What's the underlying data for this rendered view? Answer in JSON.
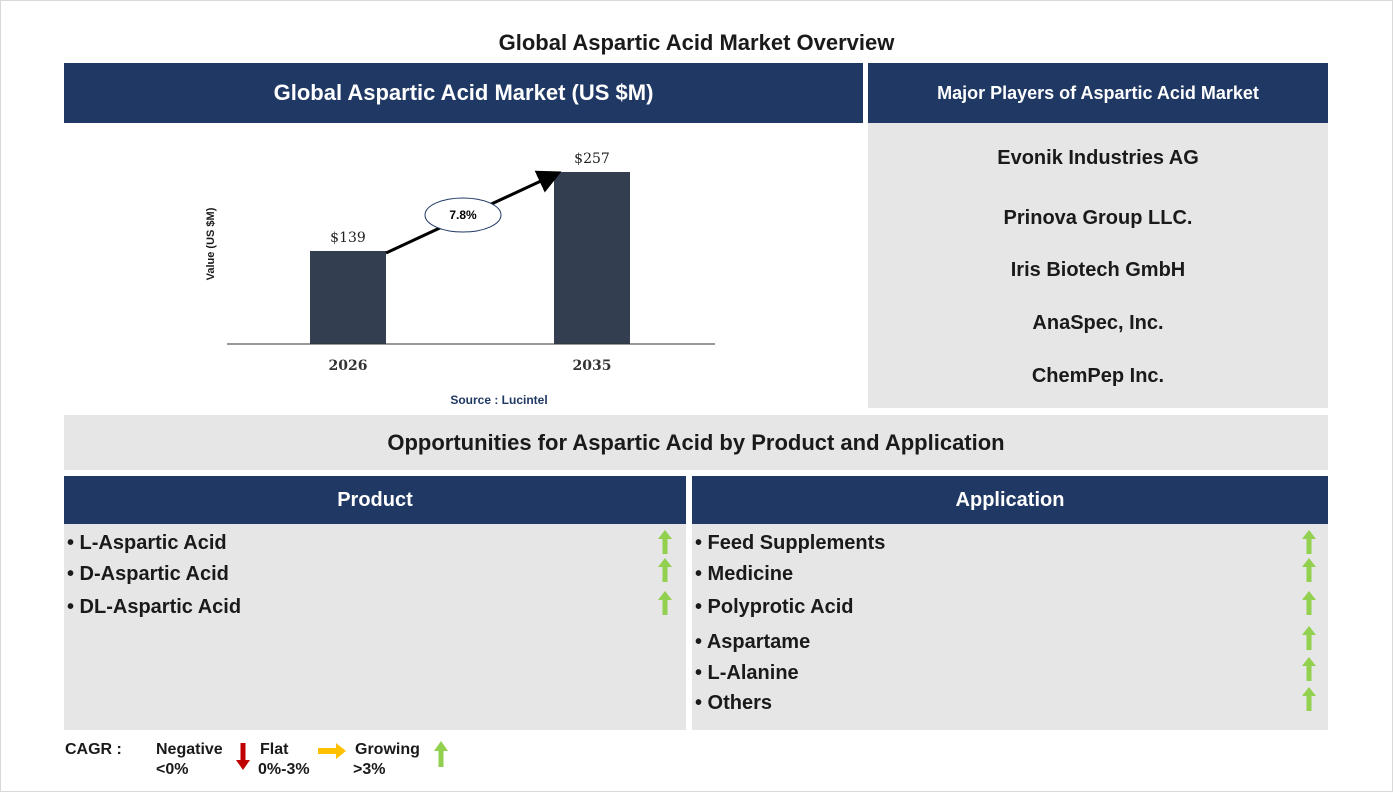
{
  "page_title": "Global Aspartic Acid Market Overview",
  "market_header": "Global Aspartic Acid Market (US $M)",
  "chart_data": {
    "type": "bar",
    "categories": [
      "2026",
      "2035"
    ],
    "values": [
      139,
      257
    ],
    "value_labels": [
      "$139",
      "$257"
    ],
    "ylabel": "Value (US $M)",
    "cagr_label": "7.8%",
    "source": "Source : Lucintel",
    "bar_color": "#333f50"
  },
  "players": {
    "header": "Major Players of Aspartic Acid Market",
    "items": [
      "Evonik Industries AG",
      "Prinova Group LLC.",
      "Iris Biotech GmbH",
      "AnaSpec, Inc.",
      "ChemPep Inc."
    ]
  },
  "opportunities_title": "Opportunities for Aspartic Acid by Product and Application",
  "product": {
    "header": "Product",
    "items": [
      {
        "label": "• L-Aspartic Acid",
        "trend": "growing"
      },
      {
        "label": "• D-Aspartic Acid",
        "trend": "growing"
      },
      {
        "label": "• DL-Aspartic Acid",
        "trend": "growing"
      }
    ]
  },
  "application": {
    "header": "Application",
    "items": [
      {
        "label": "• Feed Supplements",
        "trend": "growing"
      },
      {
        "label": "• Medicine",
        "trend": "growing"
      },
      {
        "label": "• Polyprotic Acid",
        "trend": "growing"
      },
      {
        "label": "• Aspartame",
        "trend": "growing"
      },
      {
        "label": "• L-Alanine",
        "trend": "growing"
      },
      {
        "label": "• Others",
        "trend": "growing"
      }
    ]
  },
  "legend": {
    "cagr": "CAGR :",
    "negative": {
      "label": "Negative",
      "range": "<0%",
      "color": "#c00000",
      "icon": "down-arrow-icon"
    },
    "flat": {
      "label": "Flat",
      "range": "0%-3%",
      "color": "#ffc000",
      "icon": "right-arrow-icon"
    },
    "growing": {
      "label": "Growing",
      "range": ">3%",
      "color": "#92d050",
      "icon": "up-arrow-icon"
    }
  }
}
